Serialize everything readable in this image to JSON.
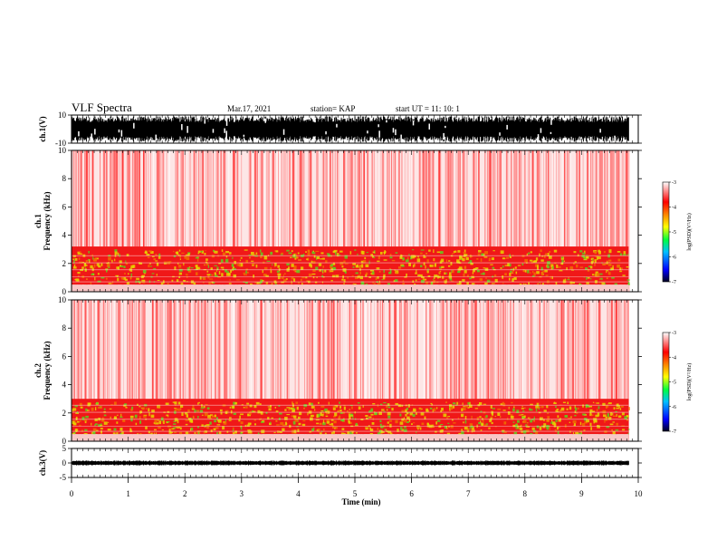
{
  "header": {
    "title": "VLF Spectra",
    "date": "Mar.17, 2021",
    "station": "station= KAP",
    "start": "start UT =   11: 10: 1"
  },
  "colors": {
    "background": "#ffffff",
    "trace": "#000000",
    "spectrogram_low": "#ffffff",
    "spectrogram_mid": "#ff2020",
    "spectrogram_high": "#e0e000"
  },
  "chart_data": [
    {
      "type": "line",
      "name": "ch1-waveform",
      "ylabel": "ch.1(V)",
      "ylim": [
        -10,
        10
      ],
      "yticks": [
        "10",
        "-10"
      ],
      "xlim": [
        0,
        10
      ],
      "data_extent_min": 9.83,
      "envelope_amplitude_v": [
        -9,
        9
      ]
    },
    {
      "type": "heatmap",
      "name": "ch1-spectrogram",
      "ylabel": "ch.1\nFrequency (kHz)",
      "ylim": [
        0,
        10
      ],
      "yticks": [
        "0",
        "2",
        "4",
        "6",
        "8",
        "10"
      ],
      "xlim": [
        0,
        10
      ],
      "data_extent_min": 9.83,
      "band_khz": [
        0.5,
        3.2
      ],
      "colorbar": {
        "label": "log(PSD)(V²/Hz)",
        "range": [
          -7,
          -3
        ],
        "ticks": [
          "-3",
          "-4",
          "-5",
          "-6",
          "-7"
        ]
      }
    },
    {
      "type": "heatmap",
      "name": "ch2-spectrogram",
      "ylabel": "ch.2\nFrequency (kHz)",
      "ylim": [
        0,
        10
      ],
      "yticks": [
        "0",
        "2",
        "4",
        "6",
        "8",
        "10"
      ],
      "xlim": [
        0,
        10
      ],
      "data_extent_min": 9.83,
      "band_khz": [
        0.5,
        3.0
      ],
      "colorbar": {
        "label": "log(PSD)(V²/Hz)",
        "range": [
          -7,
          -3
        ],
        "ticks": [
          "-3",
          "-4",
          "-5",
          "-6",
          "-7"
        ]
      }
    },
    {
      "type": "line",
      "name": "ch3-waveform",
      "ylabel": "ch.3(V)",
      "ylim": [
        -5,
        5
      ],
      "yticks": [
        "5",
        "0",
        "-5"
      ],
      "xlim": [
        0,
        10
      ],
      "data_extent_min": 9.83,
      "envelope_amplitude_v": [
        -0.8,
        0.8
      ]
    }
  ],
  "xaxis": {
    "label": "Time (min)",
    "ticks": [
      "0",
      "1",
      "2",
      "3",
      "4",
      "5",
      "6",
      "7",
      "8",
      "9",
      "10"
    ]
  }
}
